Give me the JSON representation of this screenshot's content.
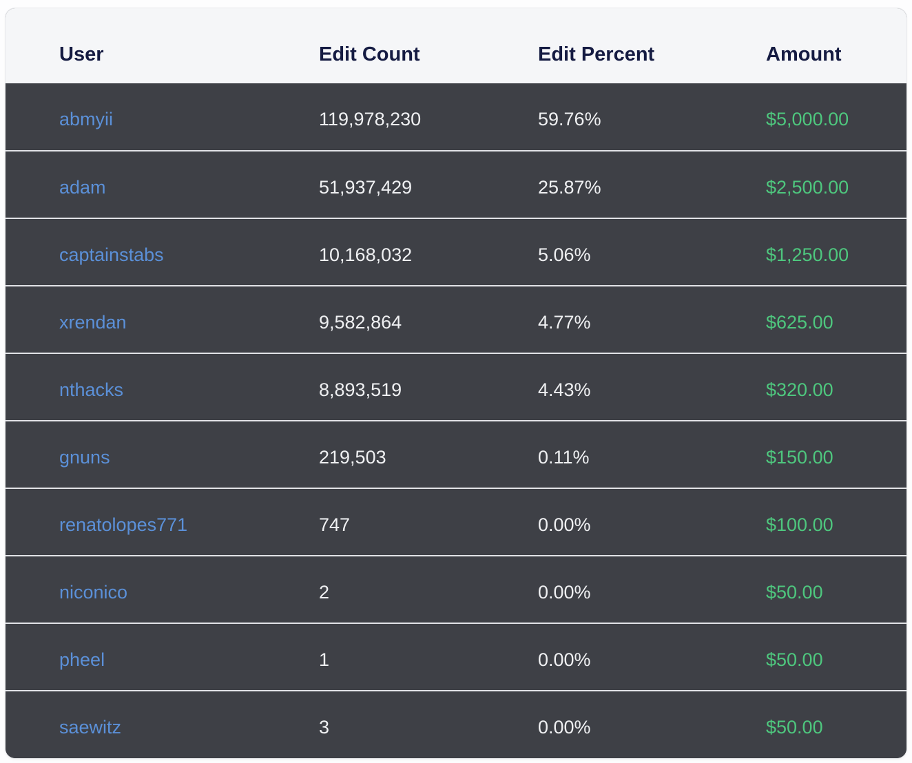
{
  "theme": {
    "page_bg": "#fdfdfe",
    "header_bg": "#f5f6f8",
    "header_text": "#151b42",
    "row_bg": "#3e4046",
    "divider": "#e2e3e7",
    "cell_text": "#eff0f2",
    "link_blue": "#5b90d8",
    "amount_green": "#4ec77e"
  },
  "table": {
    "columns": [
      {
        "key": "user",
        "label": "User"
      },
      {
        "key": "edit_count",
        "label": "Edit Count"
      },
      {
        "key": "edit_percent",
        "label": "Edit Percent"
      },
      {
        "key": "amount",
        "label": "Amount"
      }
    ],
    "rows": [
      {
        "user": "abmyii",
        "edit_count": "119,978,230",
        "edit_percent": "59.76%",
        "amount": "$5,000.00"
      },
      {
        "user": "adam",
        "edit_count": "51,937,429",
        "edit_percent": "25.87%",
        "amount": "$2,500.00"
      },
      {
        "user": "captainstabs",
        "edit_count": "10,168,032",
        "edit_percent": "5.06%",
        "amount": "$1,250.00"
      },
      {
        "user": "xrendan",
        "edit_count": "9,582,864",
        "edit_percent": "4.77%",
        "amount": "$625.00"
      },
      {
        "user": "nthacks",
        "edit_count": "8,893,519",
        "edit_percent": "4.43%",
        "amount": "$320.00"
      },
      {
        "user": "gnuns",
        "edit_count": "219,503",
        "edit_percent": "0.11%",
        "amount": "$150.00"
      },
      {
        "user": "renatolopes771",
        "edit_count": "747",
        "edit_percent": "0.00%",
        "amount": "$100.00"
      },
      {
        "user": "niconico",
        "edit_count": "2",
        "edit_percent": "0.00%",
        "amount": "$50.00"
      },
      {
        "user": "pheel",
        "edit_count": "1",
        "edit_percent": "0.00%",
        "amount": "$50.00"
      },
      {
        "user": "saewitz",
        "edit_count": "3",
        "edit_percent": "0.00%",
        "amount": "$50.00"
      }
    ]
  },
  "chart_data": {
    "type": "table",
    "title": "",
    "columns": [
      "User",
      "Edit Count",
      "Edit Percent",
      "Amount"
    ],
    "rows": [
      [
        "abmyii",
        119978230,
        "59.76%",
        5000.0
      ],
      [
        "adam",
        51937429,
        "25.87%",
        2500.0
      ],
      [
        "captainstabs",
        10168032,
        "5.06%",
        1250.0
      ],
      [
        "xrendan",
        9582864,
        "4.77%",
        625.0
      ],
      [
        "nthacks",
        8893519,
        "4.43%",
        320.0
      ],
      [
        "gnuns",
        219503,
        "0.11%",
        150.0
      ],
      [
        "renatolopes771",
        747,
        "0.00%",
        100.0
      ],
      [
        "niconico",
        2,
        "0.00%",
        50.0
      ],
      [
        "pheel",
        1,
        "0.00%",
        50.0
      ],
      [
        "saewitz",
        3,
        "0.00%",
        50.0
      ]
    ]
  }
}
